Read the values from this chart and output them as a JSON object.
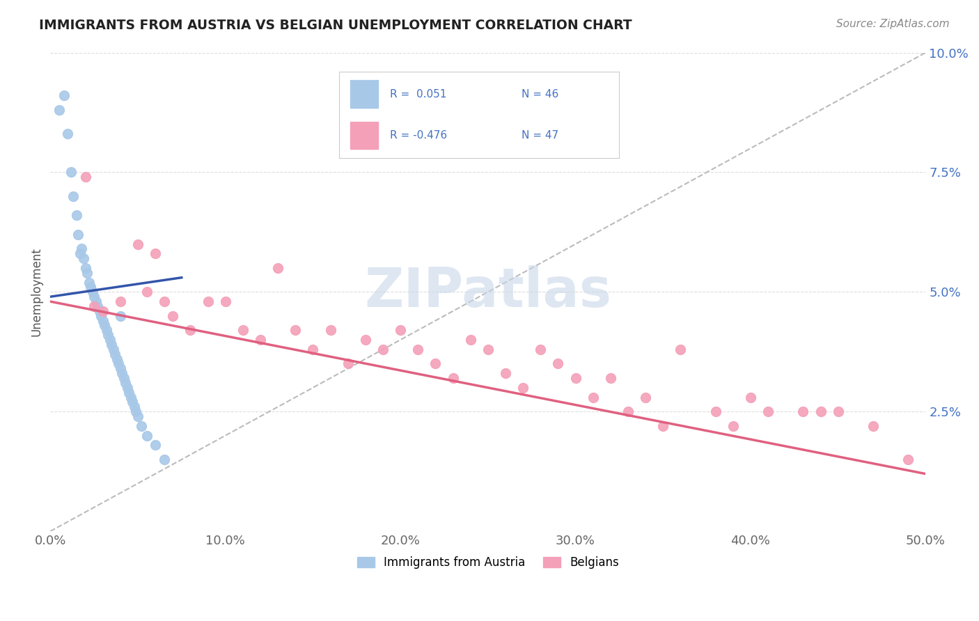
{
  "title": "IMMIGRANTS FROM AUSTRIA VS BELGIAN UNEMPLOYMENT CORRELATION CHART",
  "source_text": "Source: ZipAtlas.com",
  "ylabel": "Unemployment",
  "xlim": [
    0.0,
    0.5
  ],
  "ylim": [
    0.0,
    0.1
  ],
  "xticks": [
    0.0,
    0.1,
    0.2,
    0.3,
    0.4,
    0.5
  ],
  "xtick_labels": [
    "0.0%",
    "10.0%",
    "20.0%",
    "30.0%",
    "40.0%",
    "50.0%"
  ],
  "yticks": [
    0.0,
    0.025,
    0.05,
    0.075,
    0.1
  ],
  "ytick_labels": [
    "",
    "2.5%",
    "5.0%",
    "7.5%",
    "10.0%"
  ],
  "blue_color": "#A8C8E8",
  "pink_color": "#F4A0B8",
  "blue_line_color": "#3355AA",
  "pink_line_color": "#E06080",
  "blue_R": 0.051,
  "blue_N": 46,
  "pink_R": -0.476,
  "pink_N": 47,
  "watermark": "ZIPatlas",
  "watermark_color": "#C8D8E8",
  "blue_scatter_x": [
    0.005,
    0.008,
    0.01,
    0.012,
    0.013,
    0.015,
    0.016,
    0.017,
    0.018,
    0.019,
    0.02,
    0.021,
    0.022,
    0.023,
    0.024,
    0.025,
    0.026,
    0.027,
    0.028,
    0.029,
    0.03,
    0.031,
    0.032,
    0.033,
    0.034,
    0.035,
    0.036,
    0.037,
    0.038,
    0.039,
    0.04,
    0.04,
    0.041,
    0.042,
    0.043,
    0.044,
    0.045,
    0.046,
    0.047,
    0.048,
    0.049,
    0.05,
    0.052,
    0.055,
    0.06,
    0.065
  ],
  "blue_scatter_y": [
    0.088,
    0.091,
    0.083,
    0.075,
    0.07,
    0.066,
    0.062,
    0.058,
    0.059,
    0.057,
    0.055,
    0.054,
    0.052,
    0.051,
    0.05,
    0.049,
    0.048,
    0.047,
    0.046,
    0.045,
    0.044,
    0.043,
    0.042,
    0.041,
    0.04,
    0.039,
    0.038,
    0.037,
    0.036,
    0.035,
    0.034,
    0.045,
    0.033,
    0.032,
    0.031,
    0.03,
    0.029,
    0.028,
    0.027,
    0.026,
    0.025,
    0.024,
    0.022,
    0.02,
    0.018,
    0.015
  ],
  "pink_scatter_x": [
    0.02,
    0.025,
    0.03,
    0.04,
    0.05,
    0.055,
    0.06,
    0.065,
    0.07,
    0.08,
    0.09,
    0.1,
    0.11,
    0.12,
    0.13,
    0.14,
    0.15,
    0.16,
    0.17,
    0.18,
    0.19,
    0.2,
    0.21,
    0.22,
    0.23,
    0.24,
    0.25,
    0.26,
    0.27,
    0.28,
    0.29,
    0.3,
    0.31,
    0.32,
    0.33,
    0.34,
    0.35,
    0.36,
    0.38,
    0.39,
    0.4,
    0.41,
    0.43,
    0.44,
    0.45,
    0.47,
    0.49
  ],
  "pink_scatter_y": [
    0.074,
    0.047,
    0.046,
    0.048,
    0.06,
    0.05,
    0.058,
    0.048,
    0.045,
    0.042,
    0.048,
    0.048,
    0.042,
    0.04,
    0.055,
    0.042,
    0.038,
    0.042,
    0.035,
    0.04,
    0.038,
    0.042,
    0.038,
    0.035,
    0.032,
    0.04,
    0.038,
    0.033,
    0.03,
    0.038,
    0.035,
    0.032,
    0.028,
    0.032,
    0.025,
    0.028,
    0.022,
    0.038,
    0.025,
    0.022,
    0.028,
    0.025,
    0.025,
    0.025,
    0.025,
    0.022,
    0.015
  ],
  "blue_line_x": [
    0.0,
    0.075
  ],
  "blue_line_y": [
    0.049,
    0.053
  ],
  "pink_line_x": [
    0.0,
    0.5
  ],
  "pink_line_y": [
    0.048,
    0.012
  ]
}
